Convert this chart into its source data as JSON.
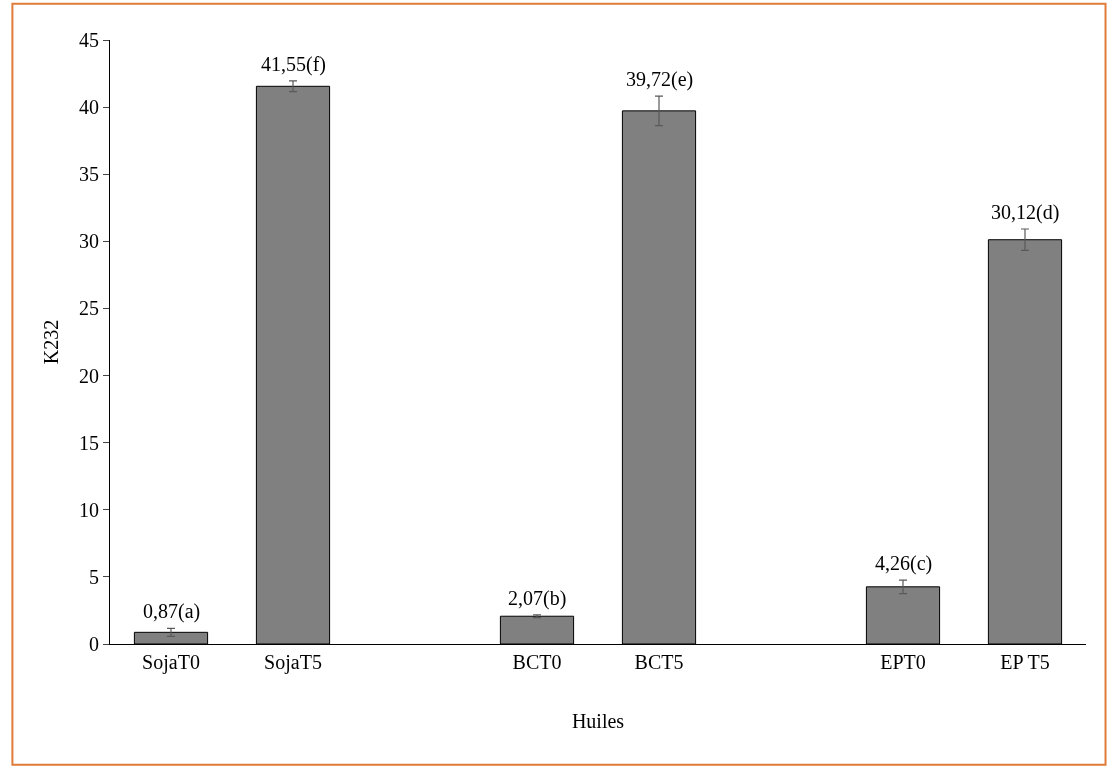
{
  "chart_data": {
    "type": "bar",
    "xlabel": "Huiles",
    "ylabel": "K232",
    "categories": [
      "SojaT0",
      "SojaT5",
      null,
      "BCT0",
      "BCT5",
      null,
      "EPT0",
      "EP T5"
    ],
    "values": [
      0.87,
      41.55,
      null,
      2.07,
      39.72,
      null,
      4.26,
      30.12
    ],
    "errors": [
      0.3,
      0.4,
      null,
      0.1,
      1.1,
      null,
      0.5,
      0.8
    ],
    "value_labels": [
      "0,87(a)",
      "41,55(f)",
      null,
      "2,07(b)",
      "39,72(e)",
      null,
      "4,26(c)",
      "30,12(d)"
    ],
    "color": "#808080",
    "ylim": [
      0,
      45
    ],
    "yticks": [
      0,
      5,
      10,
      15,
      20,
      25,
      30,
      35,
      40,
      45
    ],
    "legend": false
  }
}
